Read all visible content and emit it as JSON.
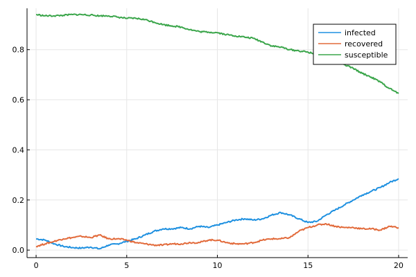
{
  "chart_data": {
    "type": "line",
    "title": "",
    "xlabel": "",
    "ylabel": "",
    "xlim": [
      -0.5,
      20.5
    ],
    "ylim": [
      -0.03,
      0.965
    ],
    "xticks": [
      0,
      5,
      10,
      15,
      20
    ],
    "xtick_labels": [
      "0",
      "5",
      "10",
      "15",
      "20"
    ],
    "yticks": [
      0.0,
      0.2,
      0.4,
      0.6,
      0.8
    ],
    "ytick_labels": [
      "0.0",
      "0.2",
      "0.4",
      "0.6",
      "0.8"
    ],
    "grid": true,
    "legend_position": "top-right",
    "series": [
      {
        "name": "infected",
        "color": "#1e90e0",
        "x": [
          0,
          0.5,
          1,
          1.5,
          2,
          2.5,
          3,
          3.5,
          4,
          4.5,
          5,
          5.5,
          6,
          6.5,
          7,
          7.5,
          8,
          8.5,
          9,
          9.5,
          10,
          10.5,
          11,
          11.5,
          12,
          12.5,
          13,
          13.5,
          14,
          14.5,
          15,
          15.5,
          16,
          16.5,
          17,
          17.5,
          18,
          18.5,
          19,
          19.5,
          20
        ],
        "y": [
          0.045,
          0.04,
          0.025,
          0.015,
          0.01,
          0.008,
          0.012,
          0.005,
          0.02,
          0.025,
          0.035,
          0.045,
          0.06,
          0.075,
          0.085,
          0.085,
          0.09,
          0.085,
          0.095,
          0.09,
          0.1,
          0.11,
          0.12,
          0.125,
          0.12,
          0.125,
          0.14,
          0.15,
          0.14,
          0.125,
          0.11,
          0.115,
          0.14,
          0.16,
          0.18,
          0.2,
          0.22,
          0.235,
          0.25,
          0.27,
          0.285
        ]
      },
      {
        "name": "recovered",
        "color": "#e26a3a",
        "x": [
          0,
          0.5,
          1,
          1.5,
          2,
          2.5,
          3,
          3.5,
          4,
          4.5,
          5,
          5.5,
          6,
          6.5,
          7,
          7.5,
          8,
          8.5,
          9,
          9.5,
          10,
          10.5,
          11,
          11.5,
          12,
          12.5,
          13,
          13.5,
          14,
          14.5,
          15,
          15.5,
          16,
          16.5,
          17,
          17.5,
          18,
          18.5,
          19,
          19.5,
          20
        ],
        "y": [
          0.015,
          0.025,
          0.035,
          0.045,
          0.05,
          0.055,
          0.05,
          0.06,
          0.045,
          0.045,
          0.04,
          0.03,
          0.025,
          0.02,
          0.02,
          0.025,
          0.025,
          0.03,
          0.03,
          0.04,
          0.04,
          0.03,
          0.025,
          0.025,
          0.03,
          0.04,
          0.045,
          0.045,
          0.05,
          0.075,
          0.09,
          0.1,
          0.105,
          0.095,
          0.09,
          0.09,
          0.085,
          0.085,
          0.08,
          0.095,
          0.09
        ]
      },
      {
        "name": "susceptible",
        "color": "#3aa54a",
        "x": [
          0,
          0.5,
          1,
          1.5,
          2,
          2.5,
          3,
          3.5,
          4,
          4.5,
          5,
          5.5,
          6,
          6.5,
          7,
          7.5,
          8,
          8.5,
          9,
          9.5,
          10,
          10.5,
          11,
          11.5,
          12,
          12.5,
          13,
          13.5,
          14,
          14.5,
          15,
          15.5,
          16,
          16.5,
          17,
          17.5,
          18,
          18.5,
          19,
          19.5,
          20
        ],
        "y": [
          0.94,
          0.935,
          0.935,
          0.937,
          0.94,
          0.94,
          0.938,
          0.935,
          0.935,
          0.93,
          0.925,
          0.925,
          0.92,
          0.91,
          0.9,
          0.895,
          0.89,
          0.88,
          0.872,
          0.87,
          0.868,
          0.86,
          0.855,
          0.85,
          0.845,
          0.83,
          0.815,
          0.81,
          0.8,
          0.795,
          0.79,
          0.78,
          0.77,
          0.76,
          0.74,
          0.725,
          0.705,
          0.69,
          0.67,
          0.645,
          0.625
        ]
      }
    ]
  }
}
